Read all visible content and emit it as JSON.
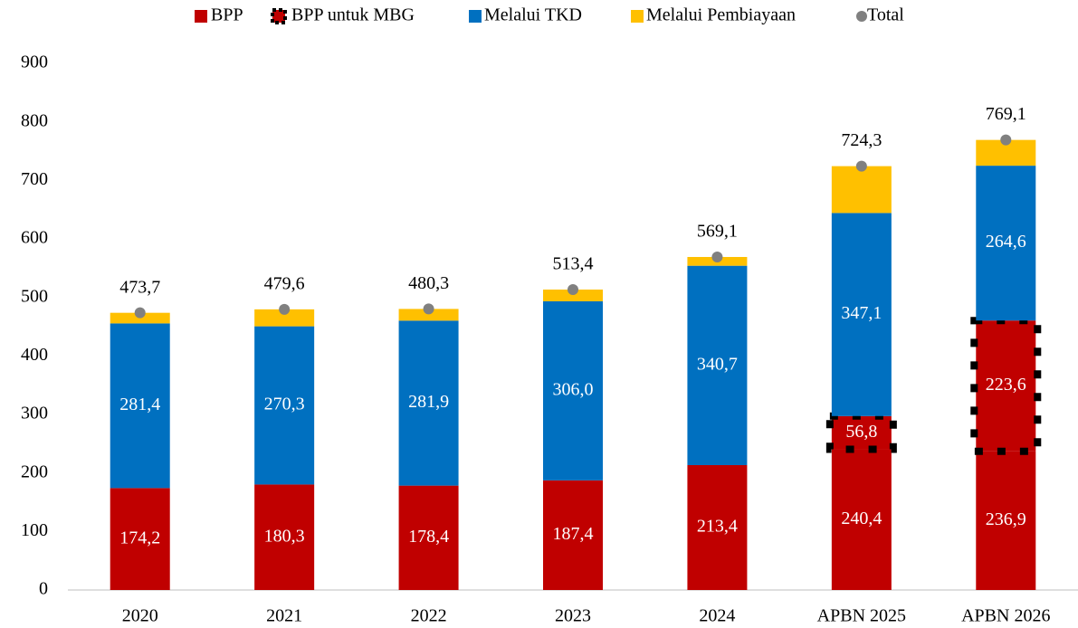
{
  "chart_data": {
    "type": "bar",
    "stacked": true,
    "categories": [
      "2020",
      "2021",
      "2022",
      "2023",
      "2024",
      "APBN 2025",
      "APBN 2026"
    ],
    "series": [
      {
        "name": "BPP",
        "color": "#c00000",
        "values": [
          174.2,
          180.3,
          178.4,
          187.4,
          213.4,
          240.4,
          236.9
        ],
        "value_labels": [
          "174,2",
          "180,3",
          "178,4",
          "187,4",
          "213,4",
          "240,4",
          "236,9"
        ]
      },
      {
        "name": "BPP untuk MBG",
        "color": "#c00000",
        "border": "dotted",
        "values": [
          null,
          null,
          null,
          null,
          null,
          56.8,
          223.6
        ],
        "value_labels": [
          null,
          null,
          null,
          null,
          null,
          "56,8",
          "223,6"
        ]
      },
      {
        "name": "Melalui TKD",
        "color": "#0070c0",
        "values": [
          281.4,
          270.3,
          281.9,
          306.0,
          340.7,
          347.1,
          264.6
        ],
        "value_labels": [
          "281,4",
          "270,3",
          "281,9",
          "306,0",
          "340,7",
          "347,1",
          "264,6"
        ]
      },
      {
        "name": "Melalui Pembiayaan",
        "color": "#ffc000",
        "values": [
          18.1,
          29.0,
          20.0,
          20.0,
          15.0,
          80.0,
          44.0
        ]
      },
      {
        "name": "Total",
        "type": "point",
        "color": "#808080",
        "values": [
          473.7,
          479.6,
          480.3,
          513.4,
          569.1,
          724.3,
          769.1
        ],
        "value_labels": [
          "473,7",
          "479,6",
          "480,3",
          "513,4",
          "569,1",
          "724,3",
          "769,1"
        ]
      }
    ],
    "ylim": [
      0,
      900
    ],
    "yticks": [
      0,
      100,
      200,
      300,
      400,
      500,
      600,
      700,
      800,
      900
    ],
    "grid": false,
    "legend": "top"
  }
}
